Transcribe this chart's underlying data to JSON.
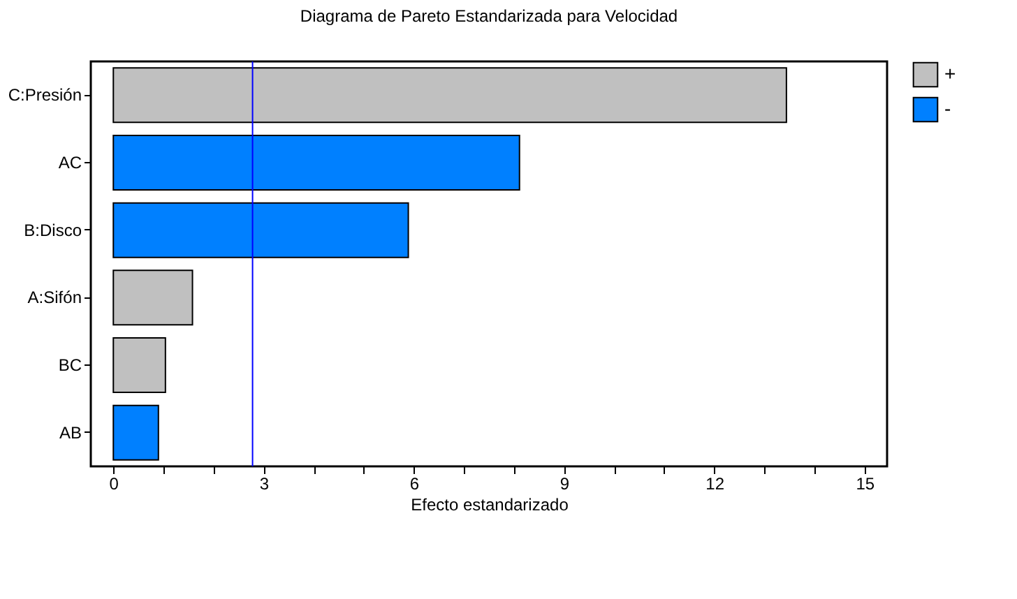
{
  "chart_data": {
    "type": "bar",
    "orientation": "horizontal",
    "title": "Diagrama de Pareto Estandarizada para Velocidad",
    "xlabel": "Efecto estandarizado",
    "categories": [
      "C:Presión",
      "AC",
      "B:Disco",
      "A:Sifón",
      "BC",
      "AB"
    ],
    "series": [
      {
        "name": "+",
        "color": "#c0c0c0",
        "values": [
          13.44,
          null,
          null,
          1.58,
          1.04,
          null
        ]
      },
      {
        "name": "-",
        "color": "#0080ff",
        "values": [
          null,
          8.11,
          5.89,
          null,
          null,
          0.9
        ]
      }
    ],
    "xlim": [
      -0.45,
      15.45
    ],
    "xticks": [
      0,
      {
        "value": 1,
        "label": null
      },
      {
        "value": 2,
        "label": null
      },
      3,
      {
        "value": 4,
        "label": null
      },
      {
        "value": 5,
        "label": null
      },
      6,
      {
        "value": 7,
        "label": null
      },
      {
        "value": 8,
        "label": null
      },
      9,
      {
        "value": 10,
        "label": null
      },
      {
        "value": 11,
        "label": null
      },
      12,
      {
        "value": 13,
        "label": null
      },
      {
        "value": 14,
        "label": null
      },
      15
    ],
    "ref_lines": [
      {
        "axis": "x",
        "value": 2.78,
        "color": "#0000ff"
      }
    ],
    "grid": false,
    "legend": "top right"
  }
}
